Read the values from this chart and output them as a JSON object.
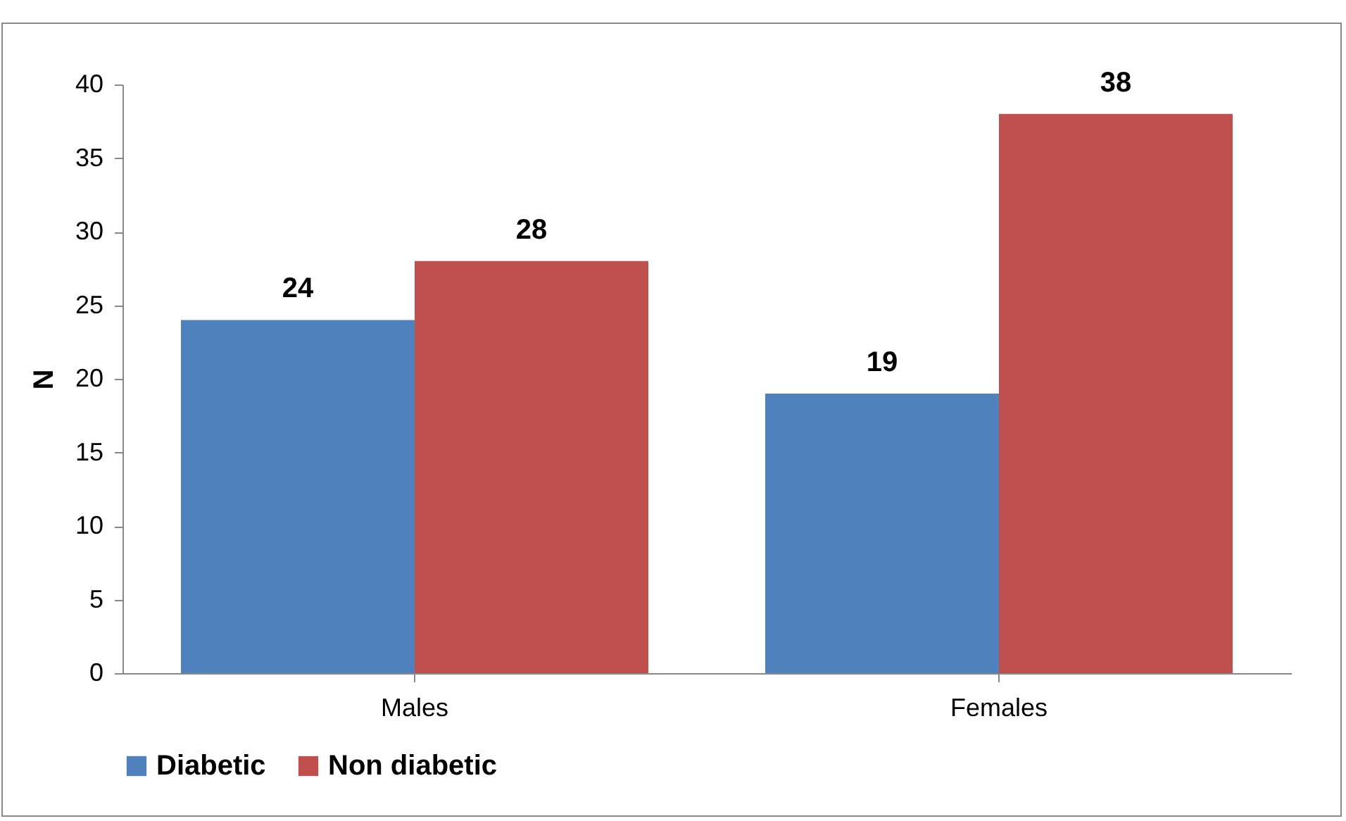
{
  "chart_data": {
    "type": "bar",
    "ylabel": "N",
    "categories": [
      "Males",
      "Females"
    ],
    "series": [
      {
        "name": "Diabetic",
        "color": "#4f81bd",
        "values": [
          24,
          19
        ]
      },
      {
        "name": "Non diabetic",
        "color": "#c0504d",
        "values": [
          28,
          38
        ]
      }
    ],
    "ylim": [
      0,
      40
    ],
    "yticks": [
      0,
      5,
      10,
      15,
      20,
      25,
      30,
      35,
      40
    ],
    "grid": false,
    "legend": "bottom",
    "data_labels": true
  }
}
